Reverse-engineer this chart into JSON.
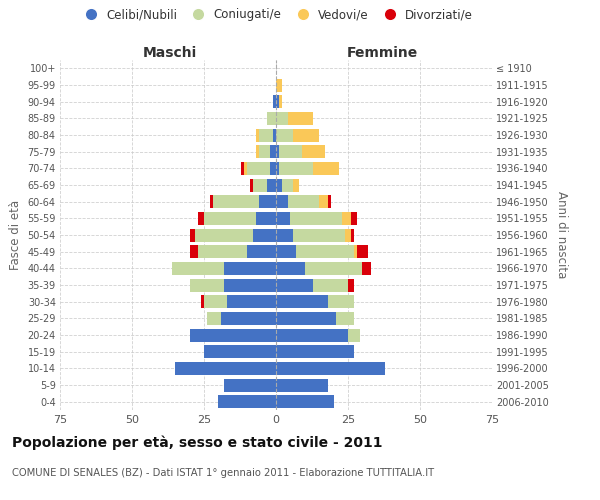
{
  "age_groups": [
    "0-4",
    "5-9",
    "10-14",
    "15-19",
    "20-24",
    "25-29",
    "30-34",
    "35-39",
    "40-44",
    "45-49",
    "50-54",
    "55-59",
    "60-64",
    "65-69",
    "70-74",
    "75-79",
    "80-84",
    "85-89",
    "90-94",
    "95-99",
    "100+"
  ],
  "birth_years": [
    "2006-2010",
    "2001-2005",
    "1996-2000",
    "1991-1995",
    "1986-1990",
    "1981-1985",
    "1976-1980",
    "1971-1975",
    "1966-1970",
    "1961-1965",
    "1956-1960",
    "1951-1955",
    "1946-1950",
    "1941-1945",
    "1936-1940",
    "1931-1935",
    "1926-1930",
    "1921-1925",
    "1916-1920",
    "1911-1915",
    "≤ 1910"
  ],
  "maschi": {
    "celibi": [
      20,
      18,
      35,
      25,
      30,
      19,
      17,
      18,
      18,
      10,
      8,
      7,
      6,
      3,
      2,
      2,
      1,
      0,
      1,
      0,
      0
    ],
    "coniugati": [
      0,
      0,
      0,
      0,
      0,
      5,
      8,
      12,
      18,
      17,
      20,
      18,
      16,
      5,
      8,
      4,
      5,
      3,
      0,
      0,
      0
    ],
    "vedovi": [
      0,
      0,
      0,
      0,
      0,
      0,
      0,
      0,
      0,
      0,
      0,
      0,
      0,
      0,
      1,
      1,
      1,
      0,
      0,
      0,
      0
    ],
    "divorziati": [
      0,
      0,
      0,
      0,
      0,
      0,
      1,
      0,
      0,
      3,
      2,
      2,
      1,
      1,
      1,
      0,
      0,
      0,
      0,
      0,
      0
    ]
  },
  "femmine": {
    "nubili": [
      20,
      18,
      38,
      27,
      25,
      21,
      18,
      13,
      10,
      7,
      6,
      5,
      4,
      2,
      1,
      1,
      0,
      0,
      1,
      0,
      0
    ],
    "coniugate": [
      0,
      0,
      0,
      0,
      4,
      6,
      9,
      12,
      20,
      20,
      18,
      18,
      11,
      4,
      12,
      8,
      6,
      4,
      0,
      0,
      0
    ],
    "vedove": [
      0,
      0,
      0,
      0,
      0,
      0,
      0,
      0,
      0,
      1,
      2,
      3,
      3,
      2,
      9,
      8,
      9,
      9,
      1,
      2,
      0
    ],
    "divorziate": [
      0,
      0,
      0,
      0,
      0,
      0,
      0,
      2,
      3,
      4,
      1,
      2,
      1,
      0,
      0,
      0,
      0,
      0,
      0,
      0,
      0
    ]
  },
  "colors": {
    "celibi": "#4472C4",
    "coniugati": "#C5D9A0",
    "vedovi": "#FAC858",
    "divorziati": "#D9000A"
  },
  "xlim": 75,
  "title": "Popolazione per età, sesso e stato civile - 2011",
  "subtitle": "COMUNE DI SENALES (BZ) - Dati ISTAT 1° gennaio 2011 - Elaborazione TUTTITALIA.IT",
  "xlabel_left": "Maschi",
  "xlabel_right": "Femmine",
  "ylabel_left": "Fasce di età",
  "ylabel_right": "Anni di nascita",
  "legend_labels": [
    "Celibi/Nubili",
    "Coniugati/e",
    "Vedovi/e",
    "Divorziati/e"
  ],
  "background_color": "#ffffff",
  "grid_color": "#cccccc"
}
